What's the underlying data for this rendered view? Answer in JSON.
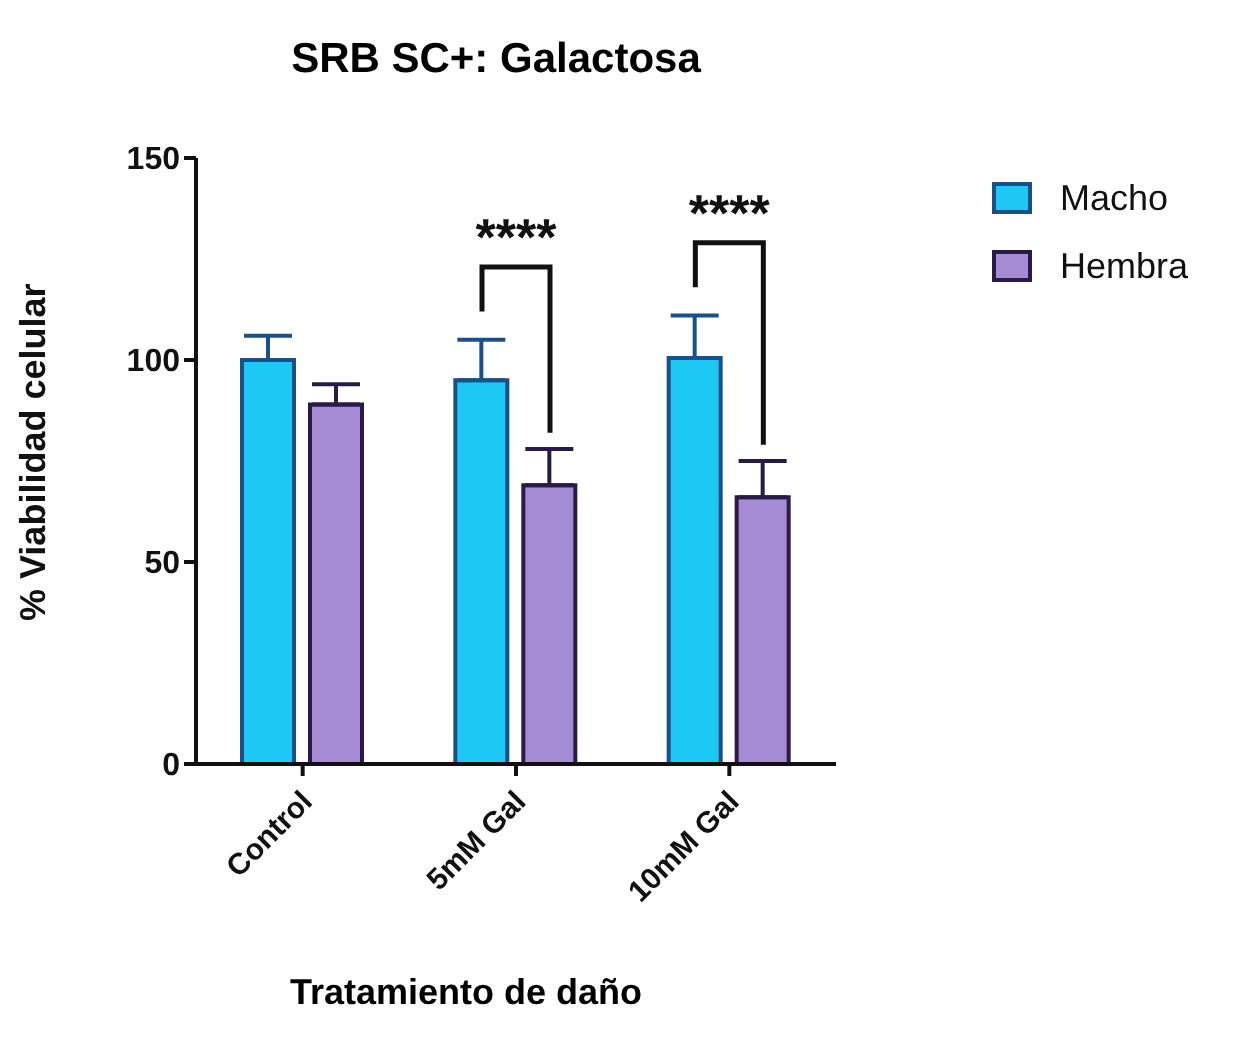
{
  "chart_data": {
    "type": "bar",
    "title": "SRB SC+: Galactosa",
    "xlabel": "Tratamiento de daño",
    "ylabel": "% Viabilidad celular",
    "categories": [
      "Control",
      "5mM Gal",
      "10mM Gal"
    ],
    "series": [
      {
        "name": "Macho",
        "color": "#1ec8f5",
        "values": [
          100,
          95,
          100.5
        ],
        "errors": [
          [
            100,
            106
          ],
          [
            95,
            105
          ],
          [
            100.5,
            111
          ]
        ]
      },
      {
        "name": "Hembra",
        "color": "#a58bd3",
        "values": [
          89,
          69,
          66
        ],
        "errors": [
          [
            89,
            94
          ],
          [
            69,
            78
          ],
          [
            66,
            75
          ]
        ]
      }
    ],
    "ylim": [
      0,
      150
    ],
    "yticks": [
      0,
      50,
      100,
      150
    ],
    "grid": false,
    "legend": "top right",
    "annotations": [
      "****",
      "****"
    ]
  }
}
